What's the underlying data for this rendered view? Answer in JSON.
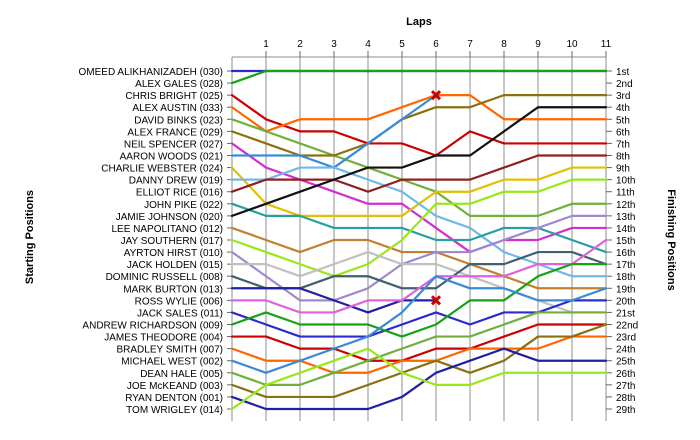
{
  "chart_data": {
    "type": "line",
    "xlabel": "Laps",
    "ylabel_left": "Starting Positions",
    "ylabel_right": "Finishing Positions",
    "laps": [
      0,
      1,
      2,
      3,
      4,
      5,
      6,
      7,
      8,
      9,
      10,
      11
    ],
    "x_tick_labels": [
      "1",
      "2",
      "3",
      "4",
      "5",
      "6",
      "7",
      "8",
      "9",
      "10",
      "11"
    ],
    "position_count": 29,
    "start_labels": [
      "OMEED ALIKHANIZADEH (030)",
      "ALEX GALES (028)",
      "CHRIS BRIGHT (025)",
      "ALEX AUSTIN (033)",
      "DAVID BINKS (023)",
      "ALEX FRANCE (029)",
      "NEIL SPENCER (027)",
      "AARON WOODS (021)",
      "CHARLIE WEBSTER (024)",
      "DANNY DREW (019)",
      "ELLIOT RICE (016)",
      "JOHN PIKE (022)",
      "JAMIE JOHNSON (020)",
      "LEE NAPOLITANO (012)",
      "JAY SOUTHERN (017)",
      "AYRTON HIRST (010)",
      "JACK HOLDEN (015)",
      "DOMINIC RUSSELL (008)",
      "MARK BURTON (013)",
      "ROSS WYLIE (006)",
      "JACK SALES (011)",
      "ANDREW RICHARDSON (009)",
      "JAMES THEODORE (004)",
      "BRADLEY SMITH (007)",
      "MICHAEL WEST (002)",
      "DEAN HALE (005)",
      "JOE McKEAND (003)",
      "RYAN DENTON (001)",
      "TOM WRIGLEY (014)"
    ],
    "finish_labels": [
      "1st",
      "2nd",
      "3rd",
      "4th",
      "5th",
      "6th",
      "7th",
      "8th",
      "9th",
      "10th",
      "11th",
      "12th",
      "13th",
      "14th",
      "15th",
      "16th",
      "17th",
      "18th",
      "19th",
      "20th",
      "21st",
      "22nd",
      "23rd",
      "24th",
      "25th",
      "26th",
      "27th",
      "28th",
      "29th"
    ],
    "series": [
      {
        "positions": [
          1,
          1,
          1,
          1,
          1,
          1,
          1,
          1,
          1,
          1,
          1,
          1
        ],
        "color": "#2b2bd0"
      },
      {
        "positions": [
          2,
          1,
          1,
          1,
          1,
          1,
          1,
          1,
          1,
          1,
          1,
          1
        ],
        "color": "#16a216"
      },
      {
        "positions": [
          3,
          5,
          6,
          6,
          7,
          7,
          8,
          6,
          7,
          7,
          7,
          7
        ],
        "color": "#cc0000"
      },
      {
        "positions": [
          4,
          6,
          5,
          5,
          5,
          4,
          3,
          3,
          5,
          5,
          5,
          5
        ],
        "color": "#ff6600"
      },
      {
        "positions": [
          5,
          6,
          7,
          8,
          9,
          10,
          11,
          13,
          13,
          13,
          12,
          12
        ],
        "color": "#70af3c"
      },
      {
        "positions": [
          6,
          7,
          8,
          8,
          7,
          5,
          4,
          4,
          3,
          3,
          3,
          3
        ],
        "color": "#8b7010"
      },
      {
        "positions": [
          7,
          9,
          10,
          11,
          12,
          12,
          14,
          16,
          15,
          15,
          14,
          14
        ],
        "color": "#d030d0"
      },
      {
        "positions": [
          8,
          8,
          8,
          9,
          7,
          5,
          3
        ],
        "color": "#3a8ad8",
        "dnf": true
      },
      {
        "positions": [
          9,
          12,
          13,
          13,
          13,
          13,
          11,
          11,
          10,
          10,
          9,
          9
        ],
        "color": "#e0c000"
      },
      {
        "positions": [
          10,
          10,
          9,
          9,
          10,
          11,
          13,
          14,
          16,
          17,
          18,
          18
        ],
        "color": "#70b8e8"
      },
      {
        "positions": [
          11,
          10,
          10,
          10,
          11,
          10,
          10,
          10,
          9,
          8,
          8,
          8
        ],
        "color": "#902020"
      },
      {
        "positions": [
          12,
          13,
          13,
          14,
          14,
          14,
          15,
          15,
          14,
          14,
          15,
          16
        ],
        "color": "#28a0a0"
      },
      {
        "positions": [
          13,
          12,
          11,
          10,
          9,
          9,
          8,
          8,
          6,
          4,
          4,
          4
        ],
        "color": "#111111"
      },
      {
        "positions": [
          14,
          15,
          16,
          15,
          15,
          16,
          16,
          17,
          18,
          19,
          19,
          19
        ],
        "color": "#c08030"
      },
      {
        "positions": [
          15,
          16,
          17,
          18,
          17,
          15,
          12,
          12,
          11,
          11,
          10,
          10
        ],
        "color": "#98e818"
      },
      {
        "positions": [
          16,
          18,
          20,
          20,
          19,
          17,
          16,
          16,
          15,
          14,
          13,
          13
        ],
        "color": "#a088d0"
      },
      {
        "positions": [
          17,
          17,
          18,
          17,
          16,
          17,
          17,
          18,
          19,
          20,
          21,
          21
        ],
        "color": "#c0c0c0"
      },
      {
        "positions": [
          18,
          19,
          19,
          18,
          18,
          19,
          19,
          17,
          17,
          16,
          16,
          17
        ],
        "color": "#406070"
      },
      {
        "positions": [
          19,
          19,
          19,
          20,
          21,
          20,
          20
        ],
        "color": "#2020a0",
        "dnf": true
      },
      {
        "positions": [
          20,
          20,
          21,
          21,
          20,
          20,
          18,
          18,
          18,
          17,
          17,
          15
        ],
        "color": "#e060e0"
      },
      {
        "positions": [
          21,
          22,
          23,
          23,
          23,
          22,
          21,
          22,
          21,
          21,
          20,
          20
        ],
        "color": "#2b2bd0"
      },
      {
        "positions": [
          22,
          21,
          22,
          22,
          22,
          23,
          22,
          20,
          20,
          18,
          17,
          17
        ],
        "color": "#16a216"
      },
      {
        "positions": [
          23,
          23,
          24,
          24,
          25,
          25,
          24,
          24,
          23,
          22,
          22,
          22
        ],
        "color": "#cc0000"
      },
      {
        "positions": [
          24,
          25,
          25,
          26,
          26,
          25,
          25,
          24,
          24,
          24,
          23,
          23
        ],
        "color": "#ff6600"
      },
      {
        "positions": [
          25,
          26,
          25,
          24,
          23,
          21,
          18,
          19,
          19,
          20,
          20,
          19
        ],
        "color": "#3a8ad8"
      },
      {
        "positions": [
          26,
          27,
          27,
          26,
          25,
          24,
          23,
          23,
          22,
          21,
          21,
          21
        ],
        "color": "#70af3c"
      },
      {
        "positions": [
          27,
          28,
          28,
          28,
          27,
          26,
          25,
          26,
          25,
          23,
          23,
          22
        ],
        "color": "#8b7010"
      },
      {
        "positions": [
          28,
          29,
          29,
          29,
          29,
          28,
          26,
          25,
          24,
          25,
          25,
          25
        ],
        "color": "#2020a0"
      },
      {
        "positions": [
          29,
          27,
          26,
          25,
          24,
          26,
          27,
          27,
          26,
          26,
          26,
          26
        ],
        "color": "#98e818"
      }
    ],
    "dnf_marker": "x",
    "grid": true,
    "x_range": [
      0,
      11
    ],
    "y_range": [
      1,
      29
    ]
  }
}
